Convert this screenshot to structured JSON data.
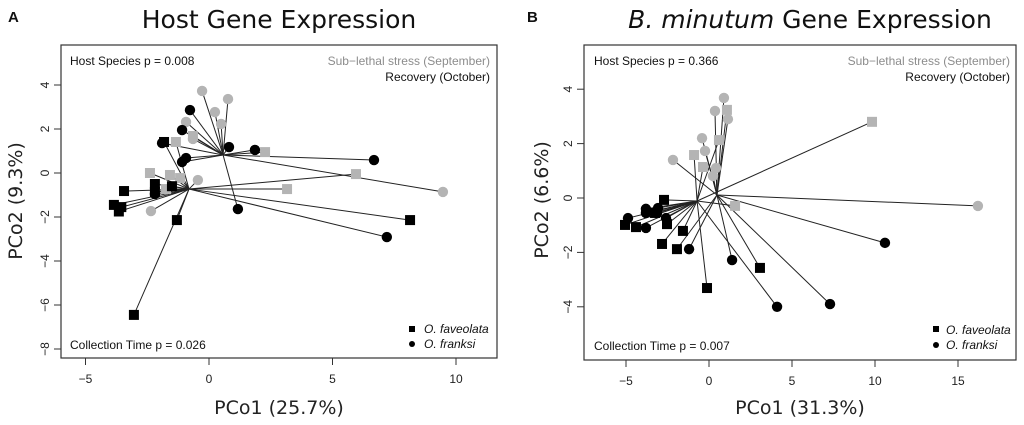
{
  "chart_data": [
    {
      "type": "scatter",
      "panel_letter": "A",
      "title": "Host Gene Expression",
      "title_italic_part": "",
      "xlabel": "PCo1 (25.7%)",
      "ylabel": "PCo2 (9.3%)",
      "xlim": [
        -6,
        11.5
      ],
      "ylim": [
        -8.5,
        5.8
      ],
      "xticks": [
        -5,
        0,
        5,
        10
      ],
      "yticks": [
        -8,
        -6,
        -4,
        -2,
        0,
        2,
        4
      ],
      "grid": false,
      "annotations": {
        "top_left": "Host Species p =  0.008",
        "bottom_left": "Collection Time p =  0.026",
        "time_legend": [
          {
            "label": "Sub−lethal stress (September)",
            "color": "#8c8c8c"
          },
          {
            "label": "Recovery (October)",
            "color": "#111111"
          }
        ]
      },
      "legend": {
        "placement": "bottom-right",
        "entries": [
          {
            "label": "O. faveolata",
            "shape": "square"
          },
          {
            "label": "O. franksi",
            "shape": "circle"
          }
        ]
      },
      "centroids": [
        {
          "x": 0.57,
          "y": 0.82
        },
        {
          "x": -0.81,
          "y": -0.73
        }
      ],
      "points": [
        {
          "x": -3.04,
          "y": -6.45,
          "species": "O. faveolata",
          "time": "October",
          "centroid": 1
        },
        {
          "x": -1.3,
          "y": -2.14,
          "species": "O. faveolata",
          "time": "October",
          "centroid": 1
        },
        {
          "x": -3.44,
          "y": -0.82,
          "species": "O. faveolata",
          "time": "October",
          "centroid": 1
        },
        {
          "x": -3.85,
          "y": -1.45,
          "species": "O. faveolata",
          "time": "October",
          "centroid": 1
        },
        {
          "x": -3.65,
          "y": -1.75,
          "species": "O. faveolata",
          "time": "October",
          "centroid": 1
        },
        {
          "x": -3.55,
          "y": -1.55,
          "species": "O. faveolata",
          "time": "October",
          "centroid": 1
        },
        {
          "x": -2.19,
          "y": -0.5,
          "species": "O. faveolata",
          "time": "October",
          "centroid": 1
        },
        {
          "x": -2.19,
          "y": -0.86,
          "species": "O. faveolata",
          "time": "October",
          "centroid": 1
        },
        {
          "x": -1.5,
          "y": -0.6,
          "species": "O. faveolata",
          "time": "October",
          "centroid": 1
        },
        {
          "x": -1.82,
          "y": 1.41,
          "species": "O. faveolata",
          "time": "October",
          "centroid": 1
        },
        {
          "x": 8.14,
          "y": -2.14,
          "species": "O. faveolata",
          "time": "October",
          "centroid": 1
        },
        {
          "x": -0.77,
          "y": 2.86,
          "species": "O. franksi",
          "time": "October",
          "centroid": 0
        },
        {
          "x": -1.09,
          "y": 1.95,
          "species": "O. franksi",
          "time": "October",
          "centroid": 0
        },
        {
          "x": -0.93,
          "y": 0.68,
          "species": "O. franksi",
          "time": "October",
          "centroid": 0
        },
        {
          "x": -1.09,
          "y": 0.5,
          "species": "O. franksi",
          "time": "October",
          "centroid": 0
        },
        {
          "x": -1.9,
          "y": 1.36,
          "species": "O. franksi",
          "time": "October",
          "centroid": 0
        },
        {
          "x": 0.81,
          "y": 1.18,
          "species": "O. franksi",
          "time": "October",
          "centroid": 0
        },
        {
          "x": 1.86,
          "y": 1.05,
          "species": "O. franksi",
          "time": "October",
          "centroid": 0
        },
        {
          "x": 6.68,
          "y": 0.59,
          "species": "O. franksi",
          "time": "October",
          "centroid": 0
        },
        {
          "x": 1.17,
          "y": -1.64,
          "species": "O. franksi",
          "time": "October",
          "centroid": 0
        },
        {
          "x": 7.2,
          "y": -2.91,
          "species": "O. franksi",
          "time": "October",
          "centroid": 1
        },
        {
          "x": -2.19,
          "y": -0.95,
          "species": "O. franksi",
          "time": "October",
          "centroid": 1
        },
        {
          "x": -0.28,
          "y": 3.73,
          "species": "O. franksi",
          "time": "September",
          "centroid": 0
        },
        {
          "x": 0.77,
          "y": 3.36,
          "species": "O. franksi",
          "time": "September",
          "centroid": 0
        },
        {
          "x": 0.24,
          "y": 2.77,
          "species": "O. franksi",
          "time": "September",
          "centroid": 0
        },
        {
          "x": 0.49,
          "y": 2.23,
          "species": "O. franksi",
          "time": "September",
          "centroid": 0
        },
        {
          "x": -0.93,
          "y": 2.32,
          "species": "O. franksi",
          "time": "September",
          "centroid": 0
        },
        {
          "x": -0.65,
          "y": 1.55,
          "species": "O. franksi",
          "time": "September",
          "centroid": 0
        },
        {
          "x": 9.47,
          "y": -0.86,
          "species": "O. franksi",
          "time": "September",
          "centroid": 0
        },
        {
          "x": -2.35,
          "y": -1.73,
          "species": "O. franksi",
          "time": "September",
          "centroid": 1
        },
        {
          "x": -0.45,
          "y": -0.32,
          "species": "O. franksi",
          "time": "September",
          "centroid": 1
        },
        {
          "x": -1.34,
          "y": 1.41,
          "species": "O. faveolata",
          "time": "September",
          "centroid": 1
        },
        {
          "x": -0.65,
          "y": 1.68,
          "species": "O. faveolata",
          "time": "September",
          "centroid": 0
        },
        {
          "x": 2.27,
          "y": 0.95,
          "species": "O. faveolata",
          "time": "September",
          "centroid": 0
        },
        {
          "x": -2.39,
          "y": 0.0,
          "species": "O. faveolata",
          "time": "September",
          "centroid": 1
        },
        {
          "x": -1.58,
          "y": -0.09,
          "species": "O. faveolata",
          "time": "September",
          "centroid": 1
        },
        {
          "x": -1.17,
          "y": -0.23,
          "species": "O. faveolata",
          "time": "September",
          "centroid": 1
        },
        {
          "x": -1.74,
          "y": -0.73,
          "species": "O. faveolata",
          "time": "September",
          "centroid": 1
        },
        {
          "x": 5.95,
          "y": -0.05,
          "species": "O. faveolata",
          "time": "September",
          "centroid": 1
        },
        {
          "x": 3.16,
          "y": -0.73,
          "species": "O. faveolata",
          "time": "September",
          "centroid": 1
        }
      ]
    },
    {
      "type": "scatter",
      "panel_letter": "B",
      "title": "Gene Expression",
      "title_italic_part": "B. minutum",
      "xlabel": "PCo1 (31.3%)",
      "ylabel": "PCo2 (6.6%)",
      "xlim": [
        -7.6,
        18.5
      ],
      "ylim": [
        -6,
        5.6
      ],
      "xticks": [
        -5,
        0,
        5,
        10,
        15
      ],
      "yticks": [
        -4,
        -2,
        0,
        2,
        4
      ],
      "grid": false,
      "annotations": {
        "top_left": "Host Species p =  0.366",
        "bottom_left": "Collection Time p =  0.007",
        "time_legend": [
          {
            "label": "Sub−lethal stress (September)",
            "color": "#8c8c8c"
          },
          {
            "label": "Recovery (October)",
            "color": "#111111"
          }
        ]
      },
      "legend": {
        "placement": "bottom-right",
        "entries": [
          {
            "label": "O. faveolata",
            "shape": "square"
          },
          {
            "label": "O. franksi",
            "shape": "circle"
          }
        ]
      },
      "centroids": [
        {
          "x": 0.48,
          "y": 0.11
        },
        {
          "x": -0.72,
          "y": -0.11
        }
      ],
      "points": [
        {
          "x": 0.9,
          "y": 3.68,
          "species": "O. franksi",
          "time": "September",
          "centroid": 0
        },
        {
          "x": 0.36,
          "y": 3.2,
          "species": "O. franksi",
          "time": "September",
          "centroid": 0
        },
        {
          "x": 1.14,
          "y": 2.9,
          "species": "O. franksi",
          "time": "September",
          "centroid": 0
        },
        {
          "x": -0.42,
          "y": 2.2,
          "species": "O. franksi",
          "time": "September",
          "centroid": 0
        },
        {
          "x": -0.24,
          "y": 1.73,
          "species": "O. franksi",
          "time": "September",
          "centroid": 0
        },
        {
          "x": -2.17,
          "y": 1.4,
          "species": "O. franksi",
          "time": "September",
          "centroid": 0
        },
        {
          "x": 0.42,
          "y": 1.1,
          "species": "O. franksi",
          "time": "September",
          "centroid": 0
        },
        {
          "x": 0.24,
          "y": 0.81,
          "species": "O. franksi",
          "time": "September",
          "centroid": 0
        },
        {
          "x": 16.2,
          "y": -0.29,
          "species": "O. franksi",
          "time": "September",
          "centroid": 0
        },
        {
          "x": 1.08,
          "y": 3.24,
          "species": "O. faveolata",
          "time": "September",
          "centroid": 0
        },
        {
          "x": 0.6,
          "y": 2.13,
          "species": "O. faveolata",
          "time": "September",
          "centroid": 1
        },
        {
          "x": -0.9,
          "y": 1.58,
          "species": "O. faveolata",
          "time": "September",
          "centroid": 1
        },
        {
          "x": -0.36,
          "y": 1.14,
          "species": "O. faveolata",
          "time": "September",
          "centroid": 1
        },
        {
          "x": 1.57,
          "y": -0.29,
          "species": "O. faveolata",
          "time": "September",
          "centroid": 1
        },
        {
          "x": 9.82,
          "y": 2.8,
          "species": "O. faveolata",
          "time": "September",
          "centroid": 1
        },
        {
          "x": -5.06,
          "y": -0.99,
          "species": "O. faveolata",
          "time": "October",
          "centroid": 1
        },
        {
          "x": -4.4,
          "y": -1.07,
          "species": "O. faveolata",
          "time": "October",
          "centroid": 1
        },
        {
          "x": -2.71,
          "y": -0.07,
          "species": "O. faveolata",
          "time": "October",
          "centroid": 1
        },
        {
          "x": -3.25,
          "y": -0.55,
          "species": "O. faveolata",
          "time": "October",
          "centroid": 1
        },
        {
          "x": -2.53,
          "y": -0.96,
          "species": "O. faveolata",
          "time": "October",
          "centroid": 1
        },
        {
          "x": -1.57,
          "y": -1.21,
          "species": "O. faveolata",
          "time": "October",
          "centroid": 1
        },
        {
          "x": -2.83,
          "y": -1.69,
          "species": "O. faveolata",
          "time": "October",
          "centroid": 1
        },
        {
          "x": -1.93,
          "y": -1.88,
          "species": "O. faveolata",
          "time": "October",
          "centroid": 0
        },
        {
          "x": -0.12,
          "y": -3.31,
          "species": "O. faveolata",
          "time": "October",
          "centroid": 1
        },
        {
          "x": 3.07,
          "y": -2.57,
          "species": "O. faveolata",
          "time": "October",
          "centroid": 0
        },
        {
          "x": -4.88,
          "y": -0.74,
          "species": "O. franksi",
          "time": "October",
          "centroid": 1
        },
        {
          "x": -3.8,
          "y": -0.4,
          "species": "O. franksi",
          "time": "October",
          "centroid": 1
        },
        {
          "x": -3.8,
          "y": -0.55,
          "species": "O. franksi",
          "time": "October",
          "centroid": 1
        },
        {
          "x": -3.07,
          "y": -0.37,
          "species": "O. franksi",
          "time": "October",
          "centroid": 1
        },
        {
          "x": -3.13,
          "y": -0.55,
          "species": "O. franksi",
          "time": "October",
          "centroid": 1
        },
        {
          "x": -3.8,
          "y": -1.1,
          "species": "O. franksi",
          "time": "October",
          "centroid": 1
        },
        {
          "x": -2.59,
          "y": -0.74,
          "species": "O. franksi",
          "time": "October",
          "centroid": 1
        },
        {
          "x": -1.2,
          "y": -1.88,
          "species": "O. franksi",
          "time": "October",
          "centroid": 0
        },
        {
          "x": 1.39,
          "y": -2.28,
          "species": "O. franksi",
          "time": "October",
          "centroid": 0
        },
        {
          "x": 4.1,
          "y": -4.0,
          "species": "O. franksi",
          "time": "October",
          "centroid": 1
        },
        {
          "x": 7.29,
          "y": -3.9,
          "species": "O. franksi",
          "time": "October",
          "centroid": 0
        },
        {
          "x": 10.6,
          "y": -1.65,
          "species": "O. franksi",
          "time": "October",
          "centroid": 0
        }
      ]
    }
  ],
  "colors": {
    "september": "#b4b4b4",
    "october": "#000000",
    "spider_line": "#222222"
  }
}
